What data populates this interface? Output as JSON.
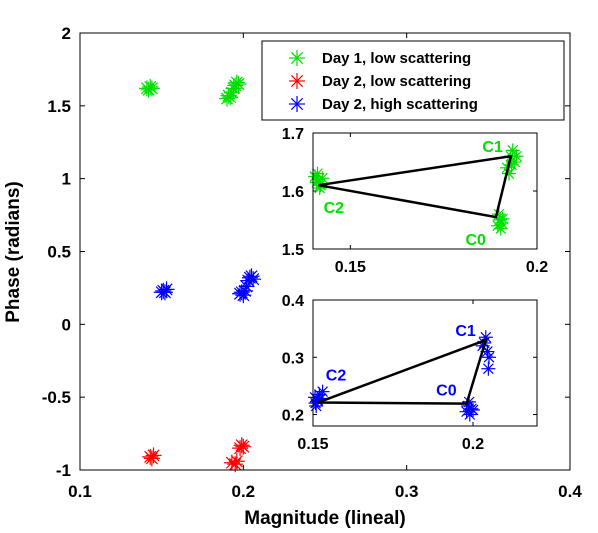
{
  "chart_data": [
    {
      "type": "scatter",
      "xlabel": "Magnitude (lineal)",
      "ylabel": "Phase (radians)",
      "xlim": [
        0.1,
        0.4
      ],
      "ylim": [
        -1,
        2
      ],
      "xticks": [
        0.1,
        0.2,
        0.3,
        0.4
      ],
      "xtick_labels": [
        "0.1",
        "0.2",
        "0.3",
        "0.4"
      ],
      "yticks": [
        -1,
        -0.5,
        0,
        0.5,
        1,
        1.5,
        2
      ],
      "ytick_labels": [
        "-1",
        "-0.5",
        "0",
        "0.5",
        "1",
        "1.5",
        "2"
      ],
      "marker": "asterisk",
      "legend_position": "top-right",
      "grid": false,
      "series": [
        {
          "name": "Day 1, low scattering",
          "color": "#00e000",
          "points": [
            [
              0.141,
              1.62
            ],
            [
              0.143,
              1.63
            ],
            [
              0.142,
              1.61
            ],
            [
              0.144,
              1.62
            ],
            [
              0.19,
              1.55
            ],
            [
              0.191,
              1.57
            ],
            [
              0.192,
              1.56
            ],
            [
              0.193,
              1.59
            ],
            [
              0.194,
              1.62
            ],
            [
              0.195,
              1.64
            ],
            [
              0.196,
              1.66
            ],
            [
              0.197,
              1.65
            ]
          ]
        },
        {
          "name": "Day 2, low scattering",
          "color": "#ff0000",
          "points": [
            [
              0.143,
              -0.91
            ],
            [
              0.145,
              -0.9
            ],
            [
              0.144,
              -0.92
            ],
            [
              0.193,
              -0.95
            ],
            [
              0.195,
              -0.96
            ],
            [
              0.196,
              -0.94
            ],
            [
              0.198,
              -0.85
            ],
            [
              0.199,
              -0.83
            ],
            [
              0.2,
              -0.84
            ]
          ]
        },
        {
          "name": "Day 2, high scattering",
          "color": "#0000ff",
          "points": [
            [
              0.151,
              0.23
            ],
            [
              0.152,
              0.22
            ],
            [
              0.153,
              0.24
            ],
            [
              0.15,
              0.22
            ],
            [
              0.198,
              0.21
            ],
            [
              0.199,
              0.22
            ],
            [
              0.2,
              0.2
            ],
            [
              0.201,
              0.23
            ],
            [
              0.202,
              0.26
            ],
            [
              0.203,
              0.3
            ],
            [
              0.204,
              0.32
            ],
            [
              0.205,
              0.33
            ],
            [
              0.206,
              0.31
            ]
          ]
        }
      ]
    },
    {
      "type": "scatter",
      "xlim": [
        0.14,
        0.2
      ],
      "ylim": [
        1.5,
        1.7
      ],
      "xticks": [
        0.15,
        0.2
      ],
      "xtick_labels": [
        "0.15",
        "0.2"
      ],
      "yticks": [
        1.5,
        1.6,
        1.7
      ],
      "ytick_labels": [
        "1.5",
        "1.6",
        "1.7"
      ],
      "color": "#00e000",
      "marker": "asterisk",
      "points": [
        [
          0.1405,
          1.625
        ],
        [
          0.141,
          1.615
        ],
        [
          0.1415,
          1.62
        ],
        [
          0.142,
          1.61
        ],
        [
          0.1425,
          1.622
        ],
        [
          0.1412,
          1.63
        ],
        [
          0.1418,
          1.605
        ],
        [
          0.1895,
          1.54
        ],
        [
          0.19,
          1.55
        ],
        [
          0.1905,
          1.545
        ],
        [
          0.1898,
          1.56
        ],
        [
          0.1903,
          1.535
        ],
        [
          0.1908,
          1.552
        ],
        [
          0.192,
          1.64
        ],
        [
          0.193,
          1.66
        ],
        [
          0.1935,
          1.67
        ],
        [
          0.194,
          1.65
        ],
        [
          0.1925,
          1.63
        ],
        [
          0.1945,
          1.66
        ],
        [
          0.1932,
          1.645
        ]
      ],
      "labeled_points": [
        {
          "label": "C0",
          "x": 0.189,
          "y": 1.555
        },
        {
          "label": "C1",
          "x": 0.193,
          "y": 1.66
        },
        {
          "label": "C2",
          "x": 0.1415,
          "y": 1.61
        }
      ],
      "triangle": [
        "C0",
        "C1",
        "C2"
      ]
    },
    {
      "type": "scatter",
      "xlim": [
        0.15,
        0.22
      ],
      "ylim": [
        0.18,
        0.4
      ],
      "xticks": [
        0.15,
        0.2
      ],
      "xtick_labels": [
        "0.15",
        "0.2"
      ],
      "yticks": [
        0.2,
        0.3,
        0.4
      ],
      "ytick_labels": [
        "0.2",
        "0.3",
        "0.4"
      ],
      "color": "#0000ff",
      "marker": "asterisk",
      "points": [
        [
          0.1505,
          0.23
        ],
        [
          0.151,
          0.215
        ],
        [
          0.1515,
          0.225
        ],
        [
          0.152,
          0.235
        ],
        [
          0.1508,
          0.22
        ],
        [
          0.1525,
          0.228
        ],
        [
          0.153,
          0.24
        ],
        [
          0.198,
          0.205
        ],
        [
          0.1985,
          0.215
        ],
        [
          0.199,
          0.2
        ],
        [
          0.1995,
          0.21
        ],
        [
          0.1988,
          0.222
        ],
        [
          0.2,
          0.208
        ],
        [
          0.203,
          0.32
        ],
        [
          0.204,
          0.335
        ],
        [
          0.2045,
          0.31
        ],
        [
          0.205,
          0.3
        ],
        [
          0.2035,
          0.325
        ],
        [
          0.2048,
          0.28
        ]
      ],
      "labeled_points": [
        {
          "label": "C0",
          "x": 0.198,
          "y": 0.219
        },
        {
          "label": "C1",
          "x": 0.204,
          "y": 0.33
        },
        {
          "label": "C2",
          "x": 0.1515,
          "y": 0.221
        }
      ],
      "triangle": [
        "C0",
        "C1",
        "C2"
      ]
    }
  ]
}
